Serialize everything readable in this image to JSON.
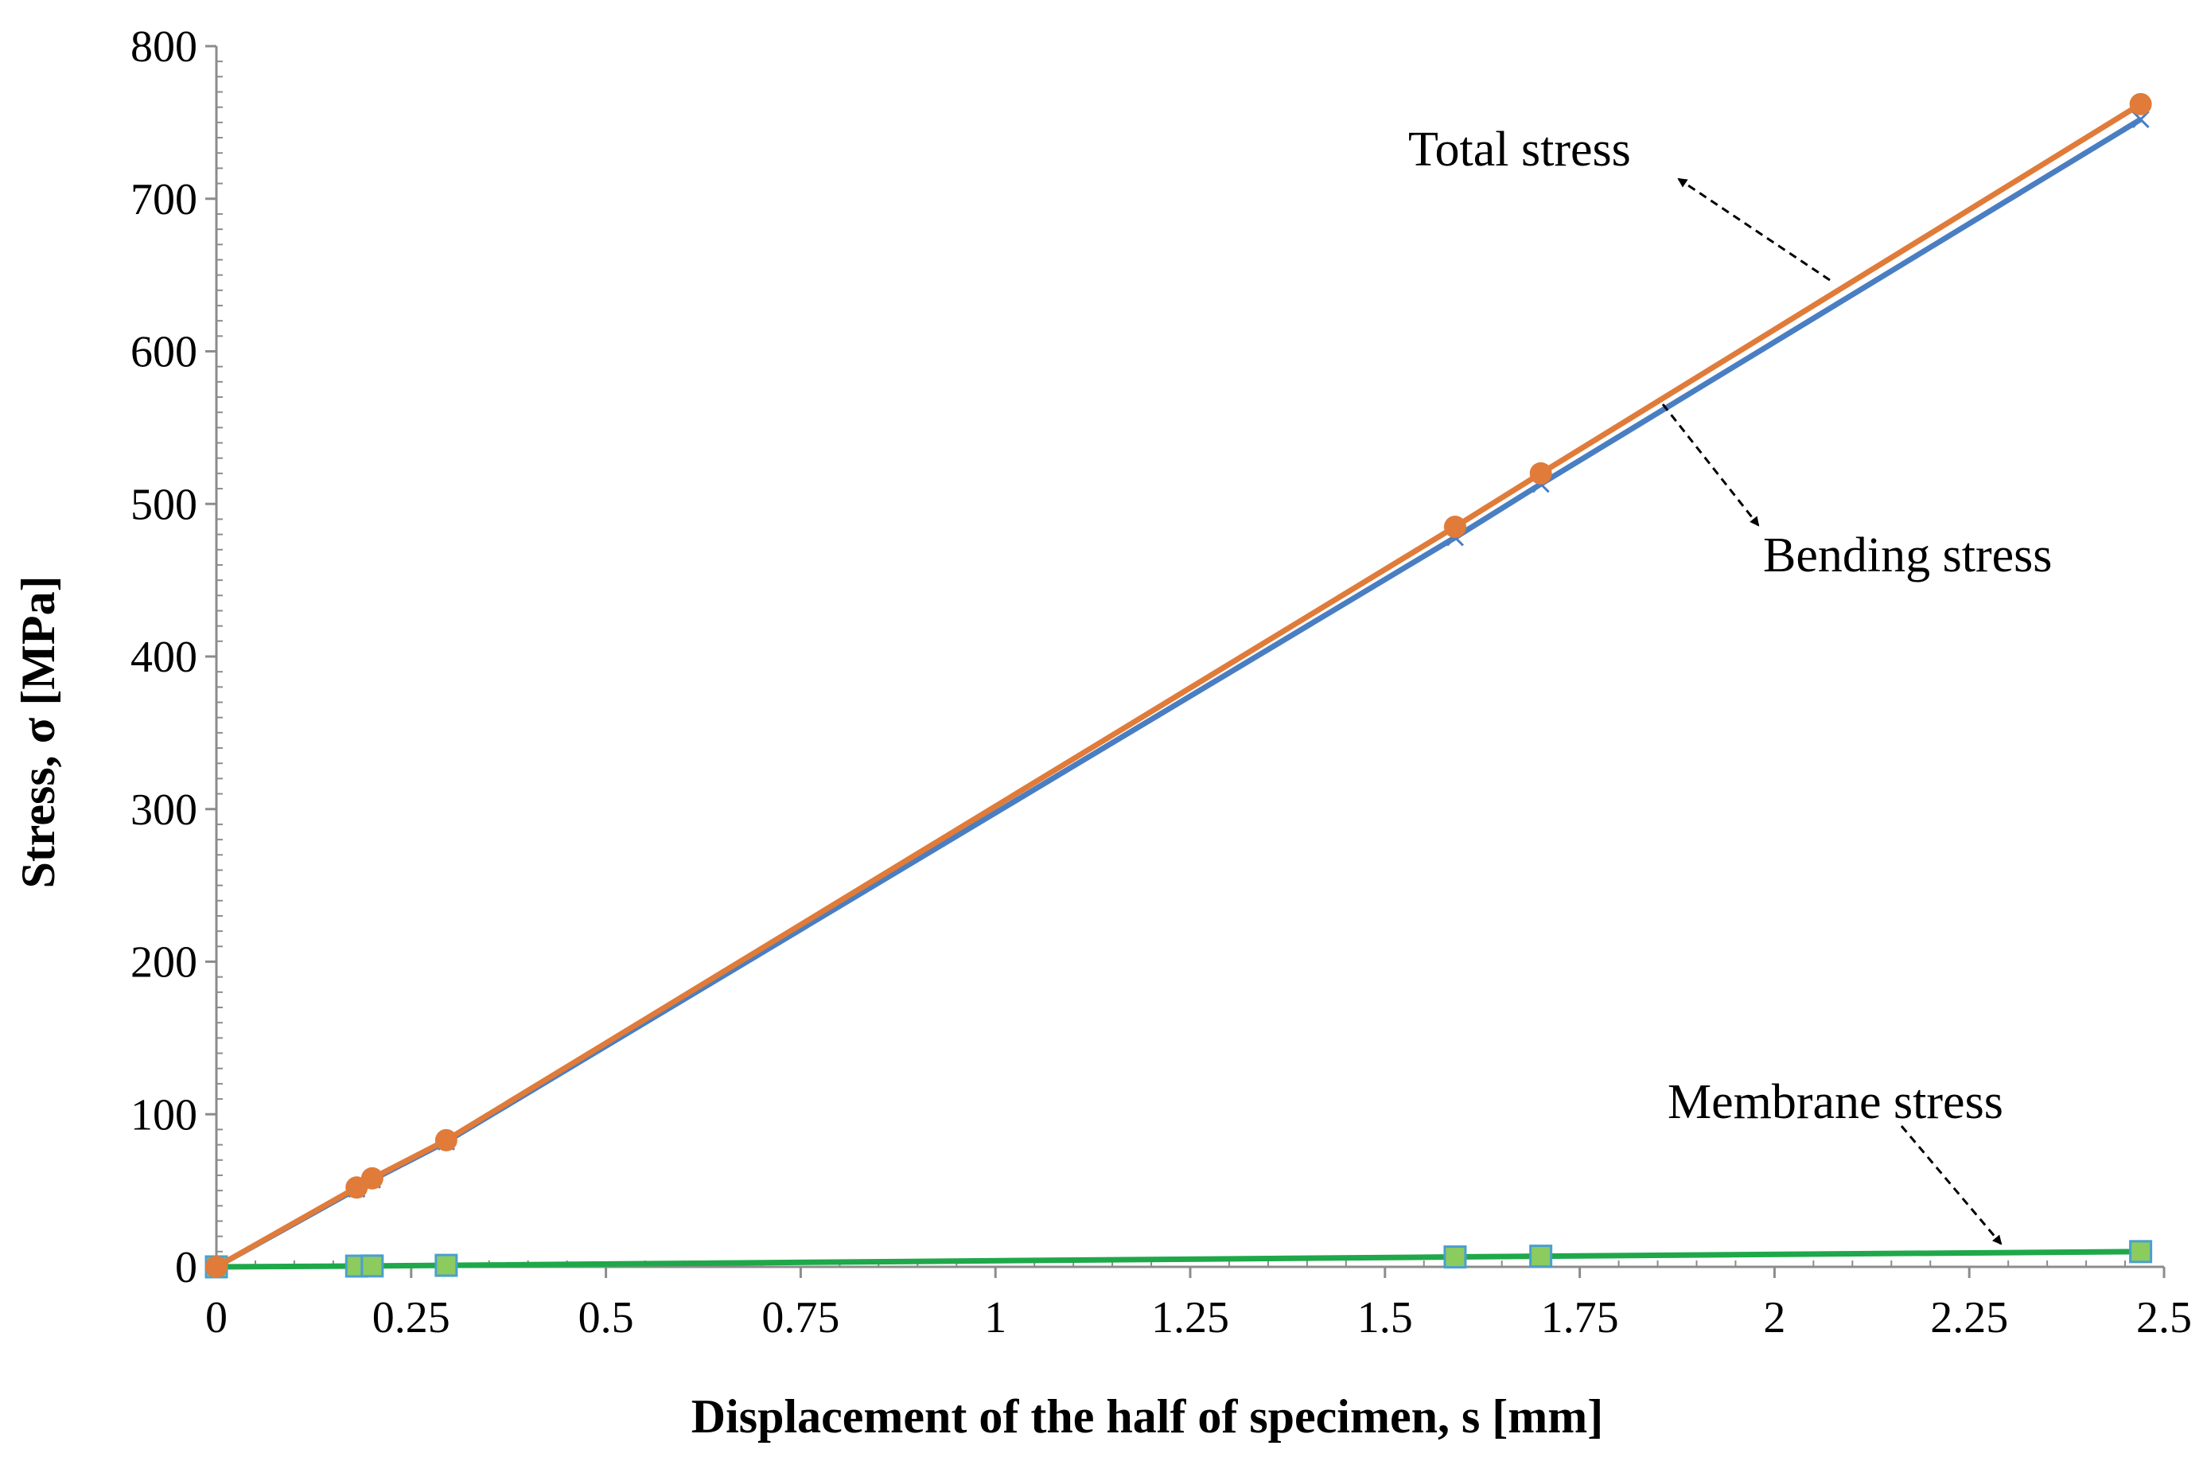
{
  "chart_data": {
    "type": "line",
    "title": "",
    "xlabel": "Displacement of the half of specimen, s [mm]",
    "ylabel": "Stress, σ [MPa]",
    "xlim": [
      0,
      2.5
    ],
    "ylim": [
      0,
      800
    ],
    "x_ticks": [
      0,
      0.25,
      0.5,
      0.75,
      1,
      1.25,
      1.5,
      1.75,
      2,
      2.25,
      2.5
    ],
    "x_tick_labels": [
      "0",
      "0.25",
      "0.5",
      "0.75",
      "1",
      "1.25",
      "1.5",
      "1.75",
      "2",
      "2.25",
      "2.5"
    ],
    "y_ticks": [
      0,
      100,
      200,
      300,
      400,
      500,
      600,
      700,
      800
    ],
    "y_tick_labels": [
      "0",
      "100",
      "200",
      "300",
      "400",
      "500",
      "600",
      "700",
      "800"
    ],
    "grid": false,
    "x": [
      0,
      0.18,
      0.2,
      0.295,
      1.59,
      1.7,
      2.47
    ],
    "series": [
      {
        "name": "Total stress",
        "marker": "circle",
        "color": "#E07B39",
        "values": [
          0,
          52,
          58,
          83,
          485,
          520,
          762
        ]
      },
      {
        "name": "Bending stress",
        "marker": "x",
        "color": "#4A7EC2",
        "values": [
          0,
          51,
          57,
          82,
          478,
          513,
          752
        ]
      },
      {
        "name": "Membrane stress",
        "marker": "square",
        "color": "#1FA84A",
        "marker_fill": "#8CCB5E",
        "values": [
          0,
          0.5,
          0.6,
          1,
          6.5,
          7,
          10
        ]
      }
    ],
    "annotations": [
      {
        "text": "Total stress",
        "points_to": "Total stress"
      },
      {
        "text": "Bending stress",
        "points_to": "Bending stress"
      },
      {
        "text": "Membrane stress",
        "points_to": "Membrane stress"
      }
    ]
  }
}
